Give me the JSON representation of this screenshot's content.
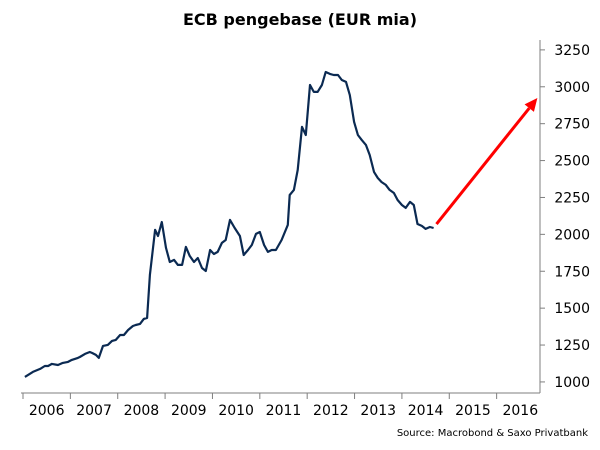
{
  "chart_data": {
    "type": "line",
    "title": "ECB pengebase (EUR mia)",
    "xlabel": "",
    "ylabel": "",
    "source": "Source: Macrobond & Saxo Privatbank",
    "xlim": [
      2006,
      2017
    ],
    "ylim": [
      925,
      3317
    ],
    "y_axis_side": "right",
    "grid": false,
    "x_ticks": [
      "2006",
      "2007",
      "2008",
      "2009",
      "2010",
      "2011",
      "2012",
      "2013",
      "2014",
      "2015",
      "2016"
    ],
    "y_ticks": [
      1000,
      1250,
      1500,
      1750,
      2000,
      2250,
      2500,
      2750,
      3000,
      3250
    ],
    "colors": {
      "series": "#0b2a52",
      "arrow": "#ff0000",
      "axis": "#7f7f7f"
    },
    "series": [
      {
        "name": "ECB pengebase",
        "x": [
          2006.04,
          2006.21,
          2006.36,
          2006.46,
          2006.53,
          2006.61,
          2006.74,
          2006.84,
          2006.95,
          2007.03,
          2007.16,
          2007.2,
          2007.31,
          2007.41,
          2007.46,
          2007.54,
          2007.6,
          2007.69,
          2007.79,
          2007.88,
          2007.96,
          2008.05,
          2008.13,
          2008.22,
          2008.32,
          2008.38,
          2008.47,
          2008.55,
          2008.62,
          2008.68,
          2008.79,
          2008.85,
          2008.93,
          2009.02,
          2009.1,
          2009.19,
          2009.27,
          2009.36,
          2009.44,
          2009.52,
          2009.61,
          2009.69,
          2009.78,
          2009.86,
          2009.95,
          2010.03,
          2010.11,
          2010.2,
          2010.28,
          2010.37,
          2010.47,
          2010.58,
          2010.66,
          2010.75,
          2010.83,
          2010.92,
          2011.0,
          2011.09,
          2011.17,
          2011.25,
          2011.34,
          2011.46,
          2011.59,
          2011.63,
          2011.72,
          2011.8,
          2011.89,
          2011.97,
          2012.06,
          2012.14,
          2012.22,
          2012.31,
          2012.39,
          2012.48,
          2012.56,
          2012.65,
          2012.73,
          2012.82,
          2012.9,
          2012.99,
          2013.07,
          2013.15,
          2013.24,
          2013.32,
          2013.41,
          2013.49,
          2013.57,
          2013.66,
          2013.74,
          2013.83,
          2013.91,
          2014.0,
          2014.08,
          2014.17,
          2014.25,
          2014.33,
          2014.42,
          2014.5,
          2014.59,
          2014.67
        ],
        "values": [
          1034,
          1068,
          1088,
          1108,
          1108,
          1122,
          1115,
          1129,
          1136,
          1149,
          1163,
          1169,
          1190,
          1203,
          1196,
          1183,
          1163,
          1244,
          1251,
          1278,
          1285,
          1318,
          1318,
          1352,
          1379,
          1386,
          1393,
          1427,
          1434,
          1725,
          2030,
          1989,
          2084,
          1908,
          1813,
          1827,
          1793,
          1793,
          1915,
          1854,
          1813,
          1840,
          1772,
          1752,
          1894,
          1867,
          1881,
          1942,
          1962,
          2098,
          2043,
          1989,
          1860,
          1894,
          1928,
          2003,
          2016,
          1928,
          1881,
          1894,
          1894,
          1962,
          2064,
          2267,
          2301,
          2436,
          2728,
          2673,
          3012,
          2965,
          2965,
          3012,
          3100,
          3087,
          3080,
          3080,
          3046,
          3033,
          2944,
          2762,
          2673,
          2640,
          2606,
          2538,
          2423,
          2382,
          2355,
          2335,
          2301,
          2280,
          2233,
          2199,
          2179,
          2220,
          2199,
          2070,
          2057,
          2037,
          2050,
          2043
        ]
      }
    ],
    "annotations": [
      {
        "type": "arrow",
        "from": [
          2014.73,
          2070
        ],
        "to": [
          2016.86,
          2924
        ]
      }
    ]
  }
}
